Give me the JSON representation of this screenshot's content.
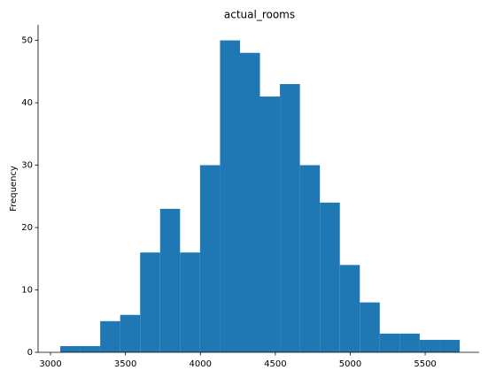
{
  "chart_data": {
    "type": "histogram",
    "title": "actual_rooms",
    "y_label": "Frequency",
    "color": "#1f77b4",
    "bins": [
      3065,
      3198.25,
      3331.5,
      3464.75,
      3598,
      3731.25,
      3864.5,
      3997.75,
      4131,
      4264.25,
      4397.5,
      4530.75,
      4664,
      4797.25,
      4930.5,
      5063.75,
      5197,
      5330.25,
      5463.5,
      5596.75,
      5730
    ],
    "values": [
      1,
      1,
      5,
      6,
      16,
      23,
      16,
      30,
      50,
      48,
      41,
      43,
      30,
      24,
      14,
      8,
      3,
      3,
      2,
      2
    ],
    "xlim": [
      2917,
      5860
    ],
    "xticks": [
      3000,
      3500,
      4000,
      4500,
      5000,
      5500
    ],
    "ylim": [
      0,
      52.5
    ],
    "yticks": [
      0,
      10,
      20,
      30,
      40,
      50
    ]
  }
}
